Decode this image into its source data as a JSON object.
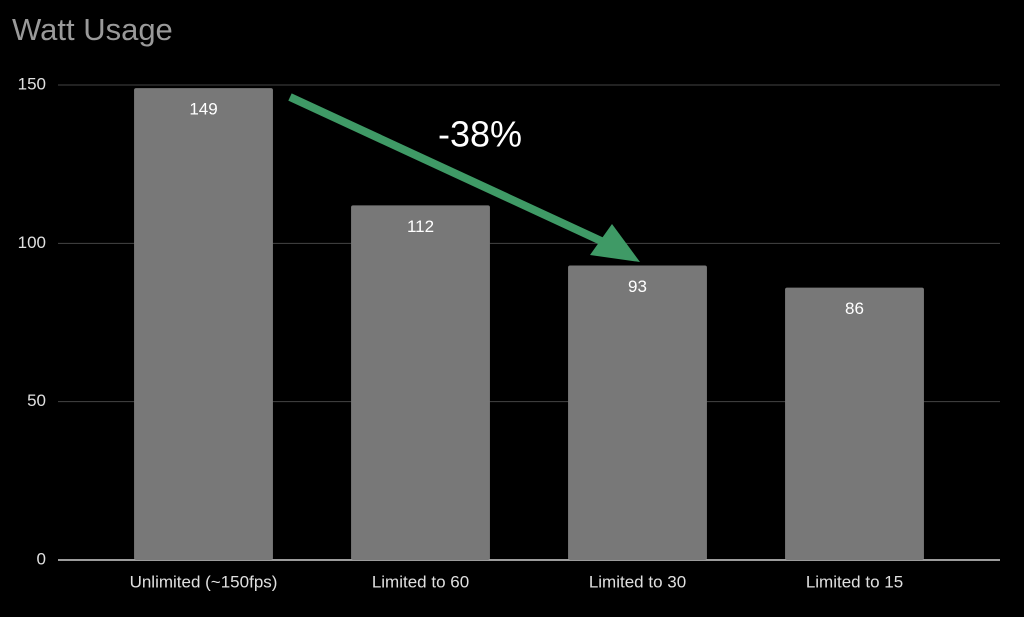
{
  "chart_data": {
    "type": "bar",
    "title": "Watt Usage",
    "categories": [
      "Unlimited (~150fps)",
      "Limited to 60",
      "Limited to 30",
      "Limited to 15"
    ],
    "values": [
      149,
      112,
      93,
      86
    ],
    "color": "#787878",
    "ylim": [
      0,
      150
    ],
    "yticks": [
      0,
      50,
      100,
      150
    ],
    "grid": true,
    "annotation": "-38%"
  }
}
